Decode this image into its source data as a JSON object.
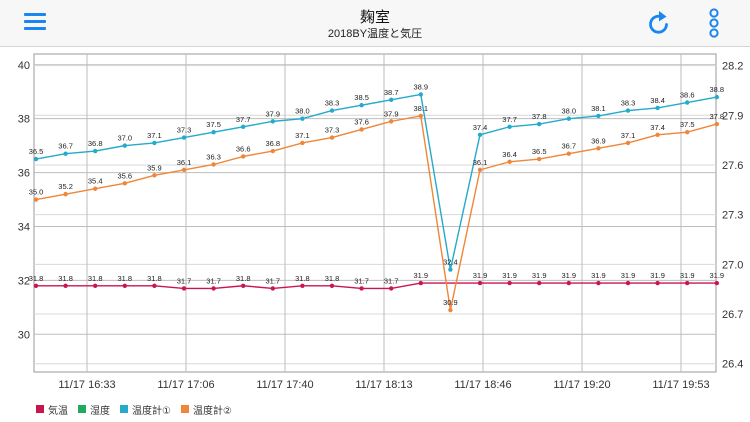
{
  "header": {
    "title": "麹室",
    "subtitle": "2018BY温度と気圧",
    "menu_icon": "hamburger-menu-icon",
    "refresh_icon": "refresh-icon",
    "more_icon": "vertical-ellipsis-icon",
    "accent_color": "#1a86f0"
  },
  "chart_data": {
    "type": "line",
    "left_axis": {
      "ticks": [
        "30",
        "32",
        "34",
        "36",
        "38",
        "40"
      ],
      "ylim": [
        28.6,
        40.4
      ]
    },
    "right_axis": {
      "ticks": [
        "26.4",
        "26.7",
        "27.0",
        "27.3",
        "27.6",
        "27.9",
        "28.2"
      ],
      "ylim": [
        26.35,
        28.27
      ]
    },
    "x_tick_labels": [
      "11/17 16:33",
      "11/17 17:06",
      "11/17 17:40",
      "11/17 18:13",
      "11/17 18:46",
      "11/17 19:20",
      "11/17 19:53"
    ],
    "grid": true,
    "legend_position": "bottom-left",
    "series": [
      {
        "name": "気温",
        "color": "#c9164e",
        "values": [
          31.8,
          31.8,
          31.8,
          31.8,
          31.8,
          31.7,
          31.7,
          31.8,
          31.7,
          31.8,
          31.8,
          31.7,
          31.7,
          31.9,
          31.9,
          31.9,
          31.9,
          31.9,
          31.9,
          31.9,
          31.9,
          31.9,
          31.9
        ]
      },
      {
        "name": "湿度",
        "color": "#1faa5e",
        "values": []
      },
      {
        "name": "温度計①",
        "color": "#24aacb",
        "values": [
          36.5,
          36.7,
          36.8,
          37.0,
          37.1,
          37.3,
          37.5,
          37.7,
          37.9,
          38.0,
          38.3,
          38.5,
          38.7,
          38.9,
          32.4,
          37.4,
          37.7,
          37.8,
          38.0,
          38.1,
          38.3,
          38.4,
          38.6,
          38.8
        ]
      },
      {
        "name": "温度計②",
        "color": "#ef8639",
        "values": [
          35.0,
          35.2,
          35.4,
          35.6,
          35.9,
          36.1,
          36.3,
          36.6,
          36.8,
          37.1,
          37.3,
          37.6,
          37.9,
          38.1,
          30.9,
          36.1,
          36.4,
          36.5,
          36.7,
          36.9,
          37.1,
          37.4,
          37.5,
          37.8
        ]
      }
    ]
  }
}
